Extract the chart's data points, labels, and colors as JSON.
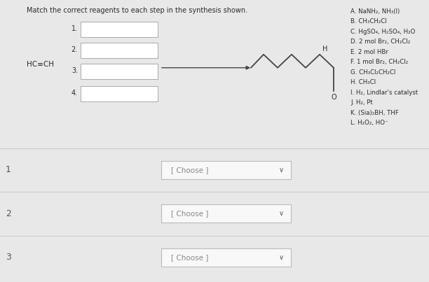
{
  "title": "Match the correct reagents to each step in the synthesis shown.",
  "bg_top": "#e8e8e8",
  "bg_radial_center": "#f0f0f0",
  "bg_section1": "#e8e8e8",
  "bg_section2": "#e0e0e0",
  "bg_section3": "#d8d8d8",
  "divider_color": "#cccccc",
  "box_color": "#ffffff",
  "box_edge": "#aaaaaa",
  "text_color": "#2a2a2a",
  "label_color": "#555555",
  "arrow_color": "#444444",
  "choose_text": "#888888",
  "choose_box": "#f8f8f8",
  "choose_edge": "#bbbbbb",
  "step_labels": [
    "1.",
    "2.",
    "3.",
    "4."
  ],
  "reagent_list": [
    "A. NaNH₂, NH₃(l)",
    "B. CH₃CH₂Cl",
    "C. HgSO₄, H₂SO₄, H₂O",
    "D. 2 mol Br₂, CH₂Cl₂",
    "E. 2 mol HBr",
    "F. 1 mol Br₂, CH₂Cl₂",
    "G. CH₃Cl₂CH₂Cl",
    "H. CH₃Cl",
    "I. H₂, Lindlar's catalyst",
    "J. H₂, Pt",
    "K. (Sia)₂BH, THF",
    "L. H₂O₂, HO⁻"
  ],
  "section_labels": [
    "1",
    "2",
    "3"
  ],
  "choose_text_label": "[ Choose ]"
}
